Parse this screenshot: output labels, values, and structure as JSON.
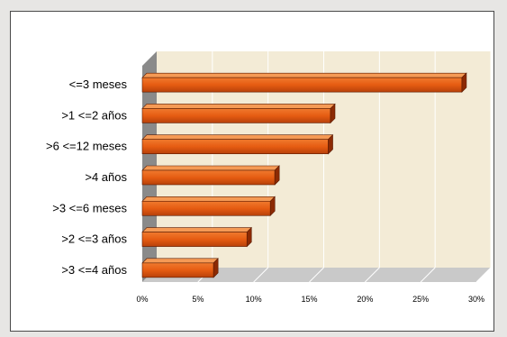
{
  "chart_data": {
    "type": "bar",
    "orientation": "horizontal",
    "style": "3d",
    "categories": [
      "<=3 meses",
      ">1 <=2 años",
      ">6 <=12 meses",
      ">4 años",
      ">3 <=6 meses",
      ">2 <=3 años",
      ">3 <=4 años"
    ],
    "values": [
      28.7,
      16.9,
      16.7,
      11.9,
      11.5,
      9.4,
      6.4
    ],
    "xlim": [
      0,
      30
    ],
    "xticks": [
      "0%",
      "5%",
      "10%",
      "15%",
      "20%",
      "25%",
      "30%"
    ],
    "title": "",
    "xlabel": "",
    "ylabel": "",
    "grid": "vertical",
    "legend": "none",
    "colors": {
      "bar_front": "#e65c12",
      "bar_top": "#f59a55",
      "bar_side": "#8c2a04",
      "plot_wall": "#f3ebd6",
      "floor": "#c9c9c9",
      "axis_wall": "#8a8a8a",
      "gridline": "#ffffff",
      "frame_border": "#4a4a4a",
      "background": "#e7e6e4"
    }
  }
}
